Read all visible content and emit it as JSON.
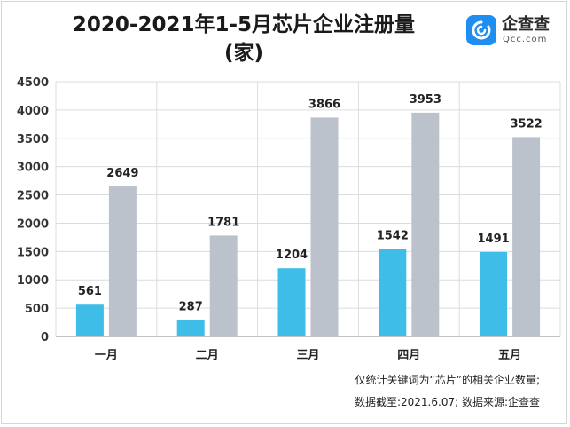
{
  "title_line1": "2020-2021年1-5月芯片企业注册量",
  "title_line2": "(家)",
  "logo": {
    "name": "企查查",
    "domain": "Qcc.com",
    "icon": "qcc-logo-icon"
  },
  "footnotes": [
    "仅统计关键词为“芯片”的相关企业数量;",
    "数据截至:2021.6.07; 数据来源:企查查"
  ],
  "chart_data": {
    "type": "bar",
    "categories": [
      "一月",
      "二月",
      "三月",
      "四月",
      "五月"
    ],
    "series": [
      {
        "values": [
          561,
          287,
          1204,
          1542,
          1491
        ],
        "color": "#3dbde8"
      },
      {
        "values": [
          2649,
          1781,
          3866,
          3953,
          3522
        ],
        "color": "#bcc2cc"
      }
    ],
    "ylim": [
      0,
      4500
    ],
    "yticks": [
      0,
      500,
      1000,
      1500,
      2000,
      2500,
      3000,
      3500,
      4000,
      4500
    ],
    "grid": true,
    "legend": "none"
  }
}
